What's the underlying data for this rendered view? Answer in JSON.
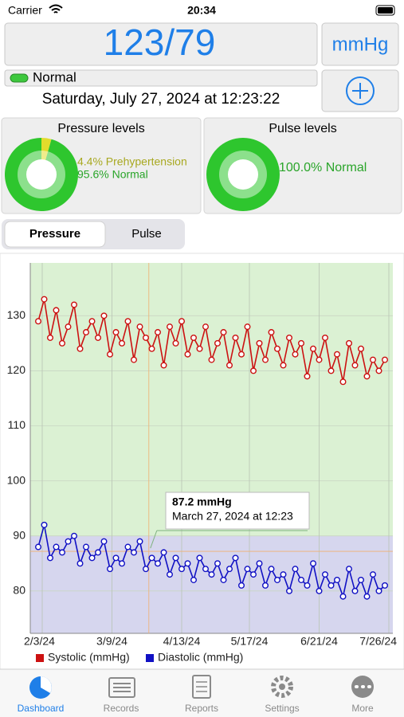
{
  "status_bar": {
    "carrier": "Carrier",
    "time": "20:34"
  },
  "reading": {
    "value": "123/79",
    "unit": "mmHg",
    "status": "Normal",
    "datetime": "Saturday, July 27, 2024 at 12:23:22"
  },
  "segments": [
    "Pressure",
    "Pulse"
  ],
  "chart_data": [
    {
      "type": "pie",
      "title": "Pressure levels",
      "categories": [
        "Prehypertension",
        "Normal"
      ],
      "values": [
        4.4,
        95.6
      ],
      "value_labels": [
        "4.4% Prehypertension",
        "95.6% Normal"
      ],
      "colors": [
        "#e3dc2c",
        "#2ec62e"
      ],
      "label_colors": [
        "#a8a820",
        "#2aa52a"
      ]
    },
    {
      "type": "pie",
      "title": "Pulse levels",
      "categories": [
        "Normal"
      ],
      "values": [
        100.0
      ],
      "value_labels": [
        "100.0% Normal"
      ],
      "colors": [
        "#2ec62e"
      ],
      "label_colors": [
        "#2aa52a"
      ]
    },
    {
      "type": "line",
      "x": [
        "2024-02-01",
        "2024-02-04",
        "2024-02-07",
        "2024-02-10",
        "2024-02-13",
        "2024-02-16",
        "2024-02-19",
        "2024-02-22",
        "2024-02-25",
        "2024-02-28",
        "2024-03-02",
        "2024-03-05",
        "2024-03-08",
        "2024-03-11",
        "2024-03-14",
        "2024-03-17",
        "2024-03-20",
        "2024-03-23",
        "2024-03-26",
        "2024-03-29",
        "2024-04-01",
        "2024-04-04",
        "2024-04-07",
        "2024-04-10",
        "2024-04-13",
        "2024-04-16",
        "2024-04-19",
        "2024-04-22",
        "2024-04-25",
        "2024-04-28",
        "2024-05-01",
        "2024-05-04",
        "2024-05-07",
        "2024-05-10",
        "2024-05-13",
        "2024-05-16",
        "2024-05-19",
        "2024-05-22",
        "2024-05-25",
        "2024-05-28",
        "2024-05-31",
        "2024-06-03",
        "2024-06-06",
        "2024-06-09",
        "2024-06-12",
        "2024-06-15",
        "2024-06-18",
        "2024-06-21",
        "2024-06-24",
        "2024-06-27",
        "2024-06-30",
        "2024-07-03",
        "2024-07-06",
        "2024-07-09",
        "2024-07-12",
        "2024-07-15",
        "2024-07-18",
        "2024-07-21",
        "2024-07-24"
      ],
      "xlim": [
        "2024-01-28",
        "2024-07-28"
      ],
      "xticks": [
        {
          "value": "2024-02-03",
          "label": "2/3/24"
        },
        {
          "value": "2024-03-09",
          "label": "3/9/24"
        },
        {
          "value": "2024-04-13",
          "label": "4/13/24"
        },
        {
          "value": "2024-05-17",
          "label": "5/17/24"
        },
        {
          "value": "2024-06-21",
          "label": "6/21/24"
        },
        {
          "value": "2024-07-26",
          "label": "7/26/24"
        }
      ],
      "ylim": [
        72.3,
        139.6
      ],
      "yticks": [
        80,
        90,
        100,
        110,
        120,
        130
      ],
      "grid": true,
      "bands": [
        {
          "from": 90,
          "to": 139.6,
          "color": "#dbf1d3"
        },
        {
          "from": 72.3,
          "to": 90,
          "color": "#d6d6ee"
        }
      ],
      "series": [
        {
          "name": "Systolic (mmHg)",
          "color": "#cc1111",
          "values": [
            129,
            133,
            126,
            131,
            125,
            128,
            132,
            124,
            127,
            129,
            126,
            130,
            123,
            127,
            125,
            129,
            122,
            128,
            126,
            124,
            127,
            121,
            128,
            125,
            129,
            123,
            126,
            124,
            128,
            122,
            125,
            127,
            121,
            126,
            123,
            128,
            120,
            125,
            122,
            127,
            124,
            121,
            126,
            123,
            125,
            119,
            124,
            122,
            126,
            120,
            123,
            118,
            125,
            121,
            124,
            119,
            122,
            120,
            122
          ]
        },
        {
          "name": "Diastolic (mmHg)",
          "color": "#1111c4",
          "values": [
            88,
            92,
            86,
            88,
            87,
            89,
            90,
            85,
            88,
            86,
            87,
            89,
            84,
            86,
            85,
            88,
            87,
            89,
            84,
            86,
            85,
            87,
            83,
            86,
            84,
            85,
            82,
            86,
            84,
            83,
            85,
            82,
            84,
            86,
            81,
            84,
            83,
            85,
            81,
            84,
            82,
            83,
            80,
            84,
            82,
            81,
            85,
            80,
            83,
            81,
            82,
            79,
            84,
            80,
            82,
            79,
            83,
            80,
            81
          ]
        }
      ],
      "annotation": {
        "x": "2024-03-27T12:23",
        "y": 87.2,
        "y_label": "87.2 mmHg",
        "x_label": "March 27, 2024 at 12:23"
      }
    }
  ],
  "tab_bar": [
    "Dashboard",
    "Records",
    "Reports",
    "Settings",
    "More"
  ]
}
